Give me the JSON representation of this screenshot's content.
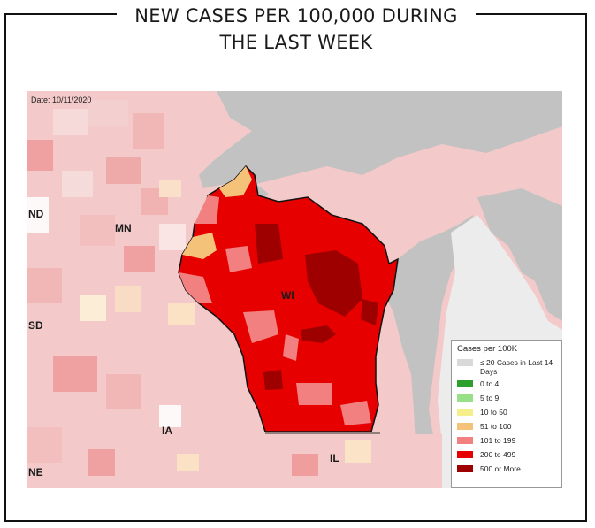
{
  "title": {
    "line1": "NEW CASES PER 100,000 DURING",
    "line2": "THE LAST WEEK"
  },
  "map": {
    "date": "Date: 10/11/2020",
    "labels": {
      "nd": "ND",
      "mn": "MN",
      "sd": "SD",
      "wi": "WI",
      "ia": "IA",
      "il": "IL",
      "ne": "NE"
    }
  },
  "legend": {
    "title": "Cases per 100K",
    "items": [
      {
        "label": "≤ 20 Cases in Last 14 Days",
        "color": "#d9d9d9"
      },
      {
        "label": "0 to 4",
        "color": "#2ca02c"
      },
      {
        "label": "5 to 9",
        "color": "#98df8a"
      },
      {
        "label": "10 to 50",
        "color": "#f4ef8a"
      },
      {
        "label": "51 to 100",
        "color": "#f5c27a"
      },
      {
        "label": "101 to 199",
        "color": "#f28080"
      },
      {
        "label": "200 to 499",
        "color": "#e60000"
      },
      {
        "label": "500 or More",
        "color": "#9e0000"
      }
    ]
  }
}
